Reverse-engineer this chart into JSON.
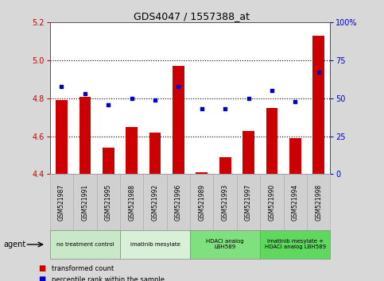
{
  "title": "GDS4047 / 1557388_at",
  "samples": [
    "GSM521987",
    "GSM521991",
    "GSM521995",
    "GSM521988",
    "GSM521992",
    "GSM521996",
    "GSM521989",
    "GSM521993",
    "GSM521997",
    "GSM521990",
    "GSM521994",
    "GSM521998"
  ],
  "red_values": [
    4.79,
    4.81,
    4.54,
    4.65,
    4.62,
    4.97,
    4.41,
    4.49,
    4.63,
    4.75,
    4.59,
    5.13
  ],
  "blue_values_pct": [
    58,
    53,
    46,
    50,
    49,
    58,
    43,
    43,
    50,
    55,
    48,
    67
  ],
  "ylim_left": [
    4.4,
    5.2
  ],
  "ylim_right": [
    0,
    100
  ],
  "yticks_left": [
    4.4,
    4.6,
    4.8,
    5.0,
    5.2
  ],
  "yticks_right": [
    0,
    25,
    50,
    75,
    100
  ],
  "ytick_labels_right": [
    "0",
    "25",
    "50",
    "75",
    "100%"
  ],
  "groups": [
    {
      "label": "no treatment control",
      "start": 0,
      "end": 3,
      "color": "#c8e8c8"
    },
    {
      "label": "imatinib mesylate",
      "start": 3,
      "end": 6,
      "color": "#d8f0d8"
    },
    {
      "label": "HDACi analog\nLBH589",
      "start": 6,
      "end": 9,
      "color": "#80e080"
    },
    {
      "label": "imatinib mesylate +\nHDACi analog LBH589",
      "start": 9,
      "end": 12,
      "color": "#60d860"
    }
  ],
  "bar_color": "#cc0000",
  "dot_color": "#0000cc",
  "bar_width": 0.5,
  "grid_color": "#000000",
  "bg_color": "#d8d8d8",
  "plot_bg": "#ffffff",
  "xtick_bg": "#d0d0d0",
  "left_tick_color": "#cc0000",
  "right_tick_color": "#0000cc",
  "agent_label": "agent",
  "legend_items": [
    {
      "label": "transformed count",
      "color": "#cc0000"
    },
    {
      "label": "percentile rank within the sample",
      "color": "#0000cc"
    }
  ]
}
